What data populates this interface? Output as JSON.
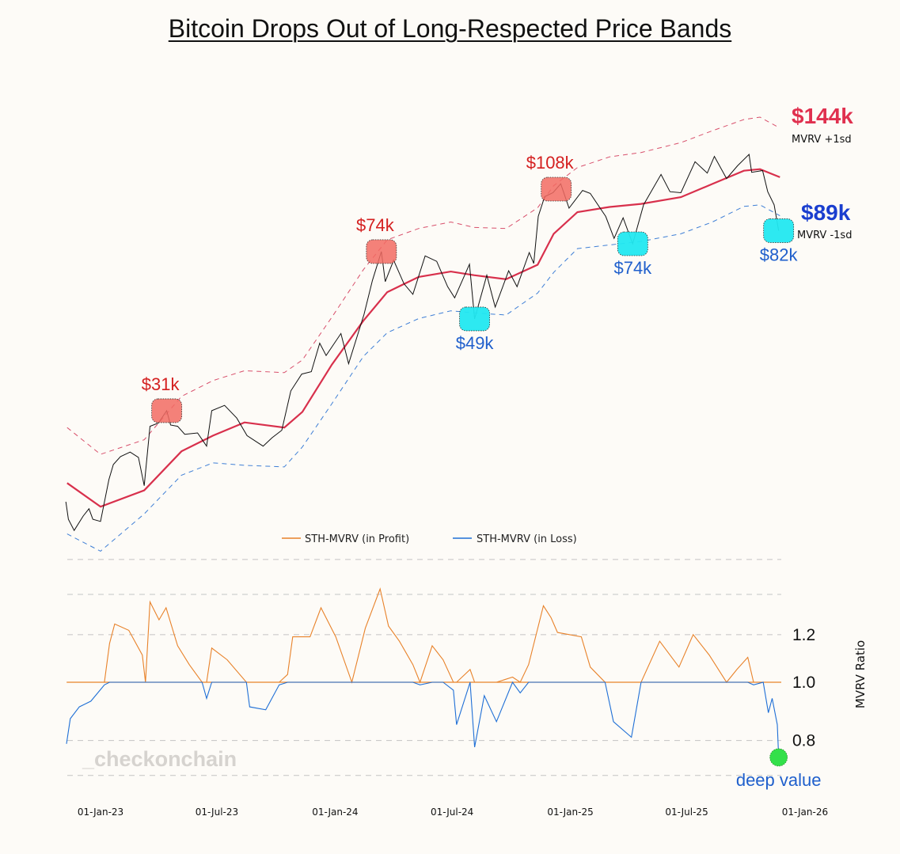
{
  "title": "Bitcoin Drops Out of Long-Respected Price Bands",
  "watermark": "_checkonchain",
  "colors": {
    "background": "#fdfbf7",
    "price": "#111111",
    "sth_realized_price": "#d8304c",
    "upper_band": "#d8506c",
    "lower_band": "#3f7fd6",
    "in_profit": "#e8822a",
    "in_loss": "#1f6fd6",
    "top_marker": "#f26b63",
    "bottom_marker": "#22e8f0",
    "deep_value_marker": "#33e04a"
  },
  "chart_data": [
    {
      "type": "line",
      "y_scale": "log",
      "grid": false,
      "x_ticks": [
        "01-Jan-23",
        "01-Jul-23",
        "01-Jan-24",
        "01-Jul-24",
        "01-Jan-25",
        "01-Jul-25",
        "01-Jan-26"
      ],
      "x_tick_dates": [
        "2023-01-01",
        "2023-07-01",
        "2024-01-01",
        "2024-07-01",
        "2025-01-01",
        "2025-07-01",
        "2026-01-01"
      ],
      "price": [
        [
          "2022-11-08",
          18500
        ],
        [
          "2022-11-12",
          16800
        ],
        [
          "2022-11-21",
          15800
        ],
        [
          "2022-12-05",
          17100
        ],
        [
          "2022-12-14",
          17800
        ],
        [
          "2022-12-20",
          16800
        ],
        [
          "2023-01-01",
          16600
        ],
        [
          "2023-01-14",
          20900
        ],
        [
          "2023-01-21",
          22700
        ],
        [
          "2023-02-01",
          23700
        ],
        [
          "2023-02-16",
          24300
        ],
        [
          "2023-03-01",
          23600
        ],
        [
          "2023-03-10",
          20200
        ],
        [
          "2023-03-19",
          28000
        ],
        [
          "2023-04-01",
          28500
        ],
        [
          "2023-04-14",
          30500
        ],
        [
          "2023-04-20",
          28200
        ],
        [
          "2023-05-01",
          28000
        ],
        [
          "2023-05-12",
          26800
        ],
        [
          "2023-06-01",
          27000
        ],
        [
          "2023-06-15",
          25100
        ],
        [
          "2023-06-23",
          30500
        ],
        [
          "2023-07-13",
          31400
        ],
        [
          "2023-08-01",
          29300
        ],
        [
          "2023-08-17",
          26600
        ],
        [
          "2023-09-11",
          25100
        ],
        [
          "2023-09-25",
          26300
        ],
        [
          "2023-10-10",
          27400
        ],
        [
          "2023-10-24",
          34000
        ],
        [
          "2023-11-10",
          37300
        ],
        [
          "2023-11-25",
          37800
        ],
        [
          "2023-12-08",
          44200
        ],
        [
          "2023-12-18",
          41300
        ],
        [
          "2024-01-10",
          46600
        ],
        [
          "2024-01-22",
          39500
        ],
        [
          "2024-02-15",
          51800
        ],
        [
          "2024-02-28",
          62400
        ],
        [
          "2024-03-13",
          73100
        ],
        [
          "2024-03-19",
          62000
        ],
        [
          "2024-04-01",
          69700
        ],
        [
          "2024-04-17",
          61300
        ],
        [
          "2024-05-01",
          57800
        ],
        [
          "2024-05-20",
          71400
        ],
        [
          "2024-06-07",
          69300
        ],
        [
          "2024-06-24",
          60300
        ],
        [
          "2024-07-05",
          56700
        ],
        [
          "2024-07-28",
          68200
        ],
        [
          "2024-08-05",
          50500
        ],
        [
          "2024-08-24",
          64200
        ],
        [
          "2024-09-06",
          53900
        ],
        [
          "2024-09-27",
          65800
        ],
        [
          "2024-10-10",
          60300
        ],
        [
          "2024-10-29",
          72700
        ],
        [
          "2024-11-05",
          68500
        ],
        [
          "2024-11-12",
          88700
        ],
        [
          "2024-11-22",
          98900
        ],
        [
          "2024-12-05",
          101000
        ],
        [
          "2024-12-17",
          106100
        ],
        [
          "2024-12-30",
          92800
        ],
        [
          "2025-01-20",
          102300
        ],
        [
          "2025-02-01",
          100600
        ],
        [
          "2025-02-25",
          88700
        ],
        [
          "2025-03-10",
          78600
        ],
        [
          "2025-03-24",
          88000
        ],
        [
          "2025-04-08",
          76300
        ],
        [
          "2025-04-25",
          94600
        ],
        [
          "2025-05-22",
          111700
        ],
        [
          "2025-06-05",
          101600
        ],
        [
          "2025-06-22",
          101000
        ],
        [
          "2025-07-14",
          119800
        ],
        [
          "2025-08-02",
          112500
        ],
        [
          "2025-08-13",
          123300
        ],
        [
          "2025-09-01",
          109200
        ],
        [
          "2025-09-18",
          117100
        ],
        [
          "2025-10-06",
          124700
        ],
        [
          "2025-10-10",
          113000
        ],
        [
          "2025-10-27",
          114100
        ],
        [
          "2025-11-04",
          101600
        ],
        [
          "2025-11-14",
          94500
        ],
        [
          "2025-11-21",
          82000
        ]
      ],
      "sth_realized_price": [
        [
          "2022-11-10",
          20500
        ],
        [
          "2023-01-01",
          18000
        ],
        [
          "2023-03-10",
          19700
        ],
        [
          "2023-05-07",
          24400
        ],
        [
          "2023-06-25",
          26600
        ],
        [
          "2023-08-13",
          28600
        ],
        [
          "2023-10-14",
          27800
        ],
        [
          "2023-11-11",
          30300
        ],
        [
          "2023-12-27",
          39300
        ],
        [
          "2024-02-14",
          50000
        ],
        [
          "2024-03-22",
          58500
        ],
        [
          "2024-05-10",
          63600
        ],
        [
          "2024-06-29",
          65500
        ],
        [
          "2024-08-04",
          64200
        ],
        [
          "2024-09-23",
          62800
        ],
        [
          "2024-11-11",
          68000
        ],
        [
          "2024-12-06",
          80600
        ],
        [
          "2025-01-12",
          90800
        ],
        [
          "2025-03-03",
          93400
        ],
        [
          "2025-04-21",
          95000
        ],
        [
          "2025-06-22",
          98600
        ],
        [
          "2025-08-10",
          106000
        ],
        [
          "2025-09-28",
          114000
        ],
        [
          "2025-10-23",
          115000
        ],
        [
          "2025-11-23",
          110000
        ]
      ],
      "mvrv_plus_1sd": [
        [
          "2022-11-10",
          27800
        ],
        [
          "2023-01-01",
          24000
        ],
        [
          "2023-03-10",
          26000
        ],
        [
          "2023-05-07",
          33000
        ],
        [
          "2023-06-25",
          36000
        ],
        [
          "2023-08-13",
          38000
        ],
        [
          "2023-10-14",
          37600
        ],
        [
          "2023-11-11",
          40300
        ],
        [
          "2023-12-27",
          51000
        ],
        [
          "2024-02-14",
          66200
        ],
        [
          "2024-03-22",
          78000
        ],
        [
          "2024-05-10",
          83000
        ],
        [
          "2024-06-29",
          86000
        ],
        [
          "2024-08-04",
          83500
        ],
        [
          "2024-09-23",
          83000
        ],
        [
          "2024-11-11",
          93000
        ],
        [
          "2024-12-06",
          105000
        ],
        [
          "2025-01-12",
          116000
        ],
        [
          "2025-03-03",
          123000
        ],
        [
          "2025-04-21",
          126000
        ],
        [
          "2025-06-22",
          133000
        ],
        [
          "2025-08-10",
          142000
        ],
        [
          "2025-09-28",
          151000
        ],
        [
          "2025-10-23",
          153000
        ],
        [
          "2025-11-23",
          144000
        ]
      ],
      "mvrv_minus_1sd": [
        [
          "2022-11-10",
          15500
        ],
        [
          "2023-01-01",
          14100
        ],
        [
          "2023-03-10",
          17300
        ],
        [
          "2023-05-07",
          21400
        ],
        [
          "2023-06-25",
          22900
        ],
        [
          "2023-08-13",
          22600
        ],
        [
          "2023-10-14",
          22400
        ],
        [
          "2023-11-11",
          25000
        ],
        [
          "2023-12-27",
          31700
        ],
        [
          "2024-02-14",
          41100
        ],
        [
          "2024-03-22",
          46800
        ],
        [
          "2024-05-10",
          50600
        ],
        [
          "2024-06-29",
          52800
        ],
        [
          "2024-08-04",
          52200
        ],
        [
          "2024-09-23",
          51600
        ],
        [
          "2024-11-11",
          58200
        ],
        [
          "2024-12-06",
          65200
        ],
        [
          "2025-01-12",
          74300
        ],
        [
          "2025-03-03",
          75800
        ],
        [
          "2025-04-21",
          77300
        ],
        [
          "2025-06-22",
          80600
        ],
        [
          "2025-08-10",
          86000
        ],
        [
          "2025-09-28",
          93700
        ],
        [
          "2025-10-23",
          94500
        ],
        [
          "2025-11-23",
          89000
        ]
      ],
      "annotations": [
        {
          "label": "$31k",
          "date": "2023-04-14",
          "value": 30500,
          "kind": "top"
        },
        {
          "label": "$74k",
          "date": "2024-03-13",
          "value": 73100,
          "kind": "top"
        },
        {
          "label": "$108k",
          "date": "2024-12-10",
          "value": 103000,
          "kind": "top"
        },
        {
          "label": "$49k",
          "date": "2024-08-05",
          "value": 50500,
          "kind": "bottom"
        },
        {
          "label": "$74k",
          "date": "2025-04-08",
          "value": 76300,
          "kind": "bottom"
        },
        {
          "label": "$82k",
          "date": "2025-11-21",
          "value": 82000,
          "kind": "bottom"
        }
      ],
      "band_labels": {
        "upper": {
          "value": "$144k",
          "caption": "MVRV +1sd"
        },
        "lower": {
          "value": "$89k",
          "caption": "MVRV -1sd"
        }
      }
    },
    {
      "type": "line",
      "y_scale": "log",
      "ylabel": "MVRV Ratio",
      "y_ticks": [
        0.8,
        1.0,
        1.2
      ],
      "y_tick_labels": [
        "0.8",
        "1.0",
        "1.2"
      ],
      "gridlines": [
        0.7,
        0.8,
        1.2,
        1.4,
        1.6
      ],
      "grid": true,
      "legend": {
        "position": "top-center",
        "entries": [
          "STH-MVRV (in Profit)",
          "STH-MVRV (in Loss)"
        ]
      },
      "baseline": 1.0,
      "sth_mvrv": [
        [
          "2022-11-09",
          0.79
        ],
        [
          "2022-11-15",
          0.87
        ],
        [
          "2022-11-29",
          0.91
        ],
        [
          "2022-12-17",
          0.93
        ],
        [
          "2023-01-07",
          0.99
        ],
        [
          "2023-01-15",
          1.16
        ],
        [
          "2023-01-23",
          1.25
        ],
        [
          "2023-02-14",
          1.22
        ],
        [
          "2023-03-07",
          1.11
        ],
        [
          "2023-03-12",
          1.0
        ],
        [
          "2023-03-19",
          1.36
        ],
        [
          "2023-04-02",
          1.27
        ],
        [
          "2023-04-13",
          1.33
        ],
        [
          "2023-05-01",
          1.15
        ],
        [
          "2023-05-19",
          1.07
        ],
        [
          "2023-06-08",
          1.0
        ],
        [
          "2023-06-15",
          0.94
        ],
        [
          "2023-06-23",
          1.14
        ],
        [
          "2023-07-17",
          1.09
        ],
        [
          "2023-08-16",
          1.0
        ],
        [
          "2023-08-21",
          0.91
        ],
        [
          "2023-09-15",
          0.9
        ],
        [
          "2023-10-06",
          0.99
        ],
        [
          "2023-10-19",
          1.03
        ],
        [
          "2023-10-27",
          1.19
        ],
        [
          "2023-11-23",
          1.19
        ],
        [
          "2023-12-10",
          1.33
        ],
        [
          "2024-01-02",
          1.19
        ],
        [
          "2024-01-27",
          1.0
        ],
        [
          "2024-02-17",
          1.23
        ],
        [
          "2024-03-11",
          1.43
        ],
        [
          "2024-03-24",
          1.24
        ],
        [
          "2024-04-10",
          1.17
        ],
        [
          "2024-05-01",
          1.07
        ],
        [
          "2024-05-12",
          0.99
        ],
        [
          "2024-05-31",
          1.15
        ],
        [
          "2024-06-17",
          1.09
        ],
        [
          "2024-07-03",
          0.97
        ],
        [
          "2024-07-08",
          0.85
        ],
        [
          "2024-07-29",
          1.05
        ],
        [
          "2024-08-05",
          0.78
        ],
        [
          "2024-08-20",
          0.95
        ],
        [
          "2024-09-08",
          0.86
        ],
        [
          "2024-10-03",
          1.02
        ],
        [
          "2024-10-15",
          0.96
        ],
        [
          "2024-10-28",
          1.07
        ],
        [
          "2024-11-20",
          1.34
        ],
        [
          "2024-12-02",
          1.28
        ],
        [
          "2024-12-12",
          1.21
        ],
        [
          "2025-01-18",
          1.19
        ],
        [
          "2025-02-01",
          1.06
        ],
        [
          "2025-02-24",
          1.0
        ],
        [
          "2025-03-09",
          0.86
        ],
        [
          "2025-04-06",
          0.81
        ],
        [
          "2025-04-21",
          1.0
        ],
        [
          "2025-05-20",
          1.17
        ],
        [
          "2025-06-19",
          1.06
        ],
        [
          "2025-07-11",
          1.2
        ],
        [
          "2025-08-05",
          1.11
        ],
        [
          "2025-09-01",
          1.0
        ],
        [
          "2025-09-17",
          1.05
        ],
        [
          "2025-10-04",
          1.1
        ],
        [
          "2025-10-13",
          0.99
        ],
        [
          "2025-10-28",
          1.0
        ],
        [
          "2025-11-05",
          0.89
        ],
        [
          "2025-11-11",
          0.94
        ],
        [
          "2025-11-19",
          0.85
        ],
        [
          "2025-11-21",
          0.75
        ]
      ],
      "annotation": {
        "label": "deep value",
        "date": "2025-11-21",
        "value": 0.75
      }
    }
  ]
}
